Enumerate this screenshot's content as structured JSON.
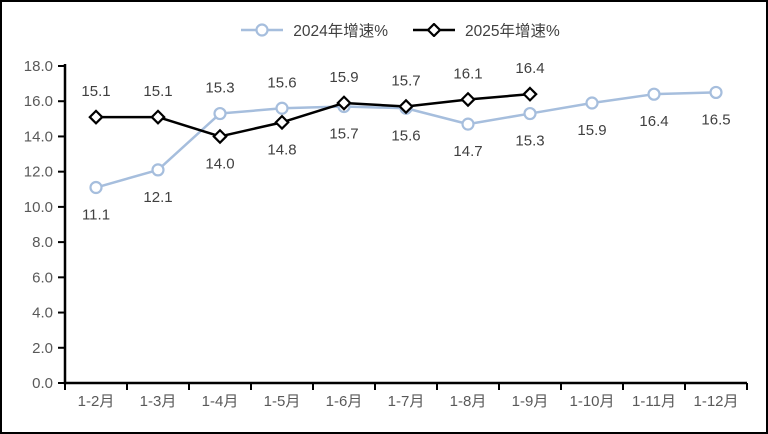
{
  "chart_data": {
    "type": "line",
    "title": "",
    "categories": [
      "1-2月",
      "1-3月",
      "1-4月",
      "1-5月",
      "1-6月",
      "1-7月",
      "1-8月",
      "1-9月",
      "1-10月",
      "1-11月",
      "1-12月"
    ],
    "series": [
      {
        "name": "2024年增速%",
        "marker": "circle",
        "color": "#a6bedd",
        "values": [
          11.1,
          12.1,
          15.3,
          15.6,
          15.7,
          15.6,
          14.7,
          15.3,
          15.9,
          16.4,
          16.5
        ],
        "label_positions": [
          "below",
          "below",
          "above",
          "above",
          "below",
          "below",
          "below",
          "below",
          "below",
          "below",
          "below"
        ]
      },
      {
        "name": "2025年增速%",
        "marker": "diamond",
        "color": "#000000",
        "values": [
          15.1,
          15.1,
          14.0,
          14.8,
          15.9,
          15.7,
          16.1,
          16.4
        ],
        "label_positions": [
          "above",
          "above",
          "below",
          "below",
          "above",
          "above",
          "above",
          "above"
        ]
      }
    ],
    "y_axis": {
      "min": 0,
      "max": 18,
      "step": 2,
      "tick_labels": [
        "0.0",
        "2.0",
        "4.0",
        "6.0",
        "8.0",
        "10.0",
        "12.0",
        "14.0",
        "16.0",
        "18.0"
      ]
    },
    "legend_position": "top",
    "grid": false,
    "colors": {
      "axis": "#000000",
      "tick_label": "#595959",
      "data_label": "#404040",
      "background": "#ffffff"
    }
  }
}
